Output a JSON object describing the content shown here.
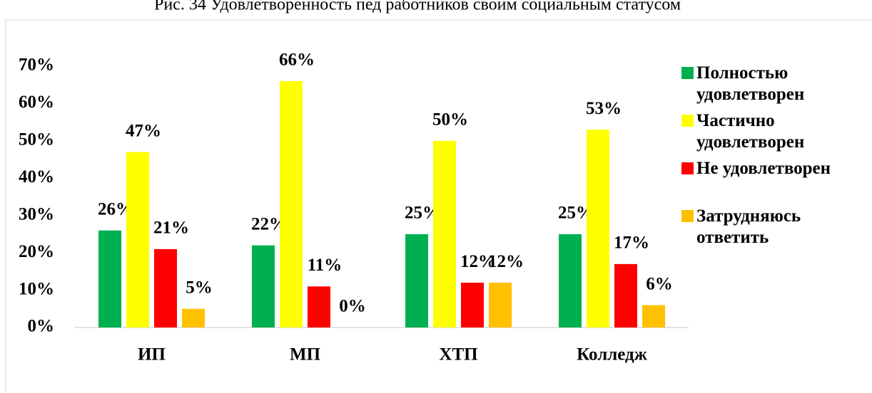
{
  "chart_data": {
    "type": "bar",
    "title": "Рис. 34 Удовлетворенность пед работников своим социальным статусом",
    "categories": [
      "ИП",
      "МП",
      "ХТП",
      "Колледж"
    ],
    "series": [
      {
        "name": "Полностью удовлетворен",
        "color": "#00b050",
        "values": [
          26,
          22,
          25,
          25
        ],
        "value_labels": [
          "26%",
          "22%",
          "25%",
          "25%"
        ]
      },
      {
        "name": "Частично удовлетворен",
        "color": "#ffff00",
        "values": [
          47,
          66,
          50,
          53
        ],
        "value_labels": [
          "47%",
          "66%",
          "50%",
          "53%"
        ]
      },
      {
        "name": "Не удовлетворен",
        "color": "#ff0000",
        "values": [
          21,
          11,
          12,
          17
        ],
        "value_labels": [
          "21%",
          "11%",
          "12%",
          "17%"
        ]
      },
      {
        "name": "Затрудняюсь ответить",
        "color": "#ffc000",
        "values": [
          5,
          0,
          12,
          6
        ],
        "value_labels": [
          "5%",
          "0%",
          "12%",
          "6%"
        ]
      }
    ],
    "ylim": [
      0,
      70
    ],
    "yticks": [
      {
        "value": 0,
        "label": "0%"
      },
      {
        "value": 10,
        "label": "10%"
      },
      {
        "value": 20,
        "label": "20%"
      },
      {
        "value": 30,
        "label": "30%"
      },
      {
        "value": 40,
        "label": "40%"
      },
      {
        "value": 50,
        "label": "50%"
      },
      {
        "value": 60,
        "label": "60%"
      },
      {
        "value": 70,
        "label": "70%"
      }
    ],
    "grid": false,
    "legend": "right"
  }
}
